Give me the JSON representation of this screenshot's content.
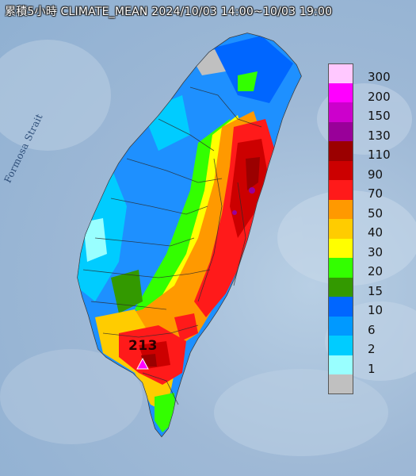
{
  "title": "累積5小時 CLIMATE_MEAN 2024/10/03 14:00~10/03 19:00",
  "strait_label": "Formosa Strait",
  "station_value": "213",
  "legend": [
    {
      "label": "300",
      "color": "#ffc8ff"
    },
    {
      "label": "200",
      "color": "#ff00ff"
    },
    {
      "label": "150",
      "color": "#cc00cc"
    },
    {
      "label": "130",
      "color": "#990099"
    },
    {
      "label": "110",
      "color": "#9b0000"
    },
    {
      "label": "90",
      "color": "#cc0000"
    },
    {
      "label": "70",
      "color": "#ff1a1a"
    },
    {
      "label": "50",
      "color": "#ff9900"
    },
    {
      "label": "40",
      "color": "#ffcc00"
    },
    {
      "label": "30",
      "color": "#ffff00"
    },
    {
      "label": "20",
      "color": "#33ff00"
    },
    {
      "label": "15",
      "color": "#339900"
    },
    {
      "label": "10",
      "color": "#0066ff"
    },
    {
      "label": "6",
      "color": "#0099ff"
    },
    {
      "label": "2",
      "color": "#00ccff"
    },
    {
      "label": "1",
      "color": "#99ffff"
    },
    {
      "label": "",
      "color": "#c0c0c0"
    }
  ]
}
